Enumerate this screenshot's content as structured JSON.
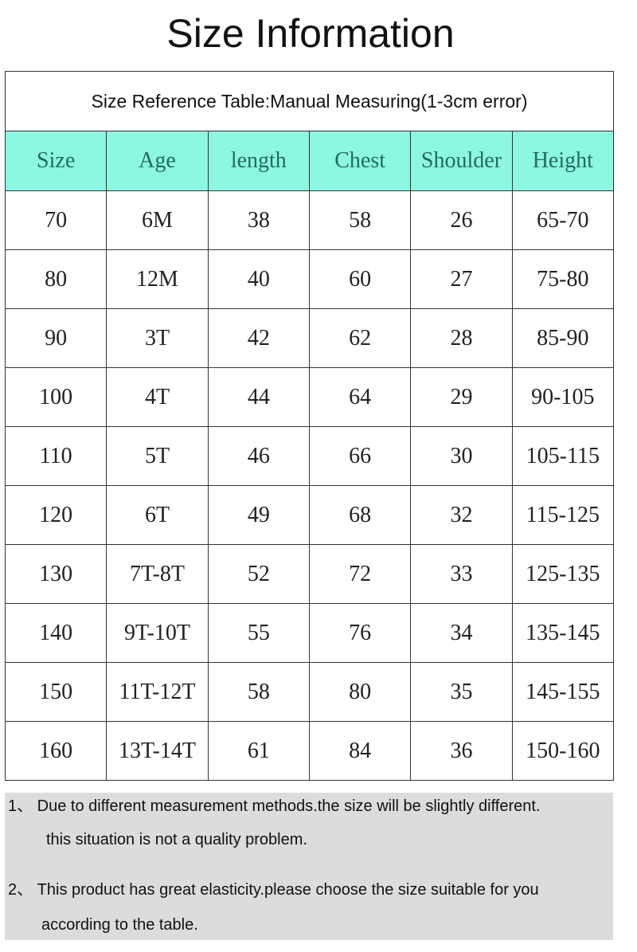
{
  "title": "Size Information",
  "caption": "Size Reference Table:Manual Measuring(1-3cm error)",
  "header_color": "#8ef7e2",
  "columns": [
    "Size",
    "Age",
    "length",
    "Chest",
    "Shoulder",
    "Height"
  ],
  "rows": [
    [
      "70",
      "6M",
      "38",
      "58",
      "26",
      "65-70"
    ],
    [
      "80",
      "12M",
      "40",
      "60",
      "27",
      "75-80"
    ],
    [
      "90",
      "3T",
      "42",
      "62",
      "28",
      "85-90"
    ],
    [
      "100",
      "4T",
      "44",
      "64",
      "29",
      "90-105"
    ],
    [
      "110",
      "5T",
      "46",
      "66",
      "30",
      "105-115"
    ],
    [
      "120",
      "6T",
      "49",
      "68",
      "32",
      "115-125"
    ],
    [
      "130",
      "7T-8T",
      "52",
      "72",
      "33",
      "125-135"
    ],
    [
      "140",
      "9T-10T",
      "55",
      "76",
      "34",
      "135-145"
    ],
    [
      "150",
      "11T-12T",
      "58",
      "80",
      "35",
      "145-155"
    ],
    [
      "160",
      "13T-14T",
      "61",
      "84",
      "36",
      "150-160"
    ]
  ],
  "notes": {
    "n1_line1": "1、 Due to different measurement methods.the size will be slightly different.",
    "n1_line2": "this situation is not a quality problem.",
    "n2_line1": "2、 This product has great elasticity.please choose the size suitable for you",
    "n2_line2": "according to the table."
  }
}
